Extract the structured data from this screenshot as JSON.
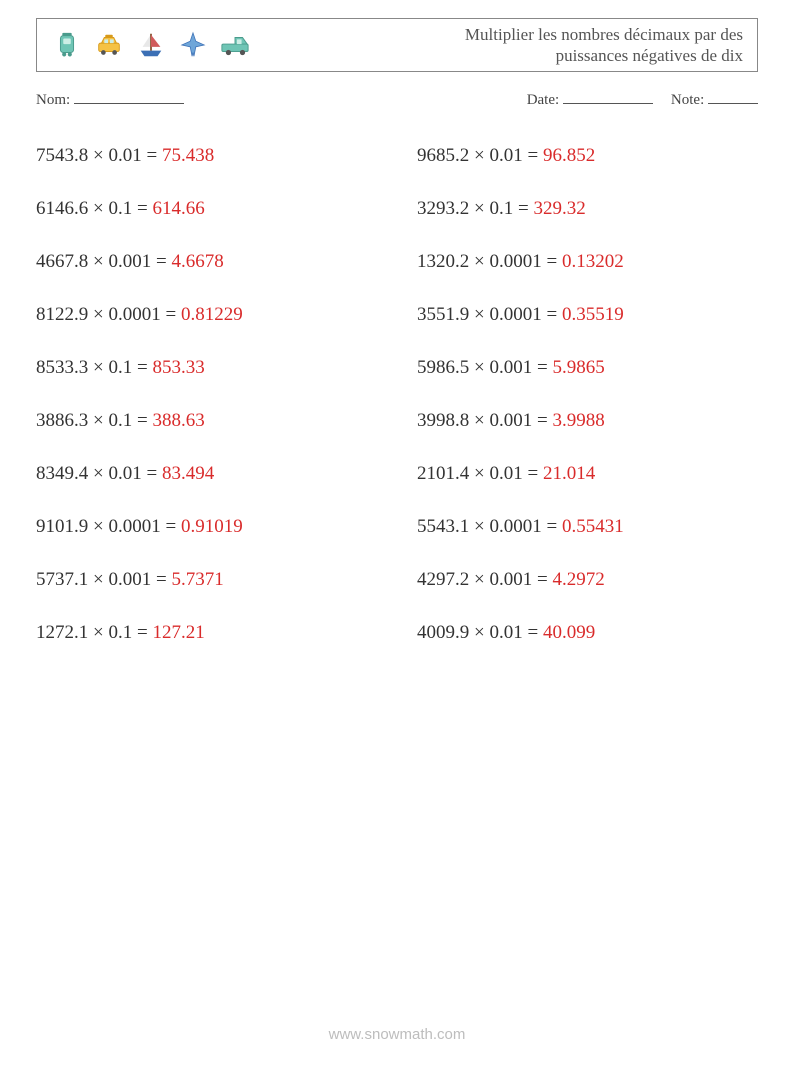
{
  "header": {
    "title_line1": "Multiplier les nombres décimaux par des",
    "title_line2": "puissances négatives de dix",
    "title_color": "#555555",
    "title_fontsize": 17,
    "border_color": "#888888",
    "icons": [
      {
        "name": "train-icon",
        "fill": "#6fc5b5",
        "accent": "#4a9b8c"
      },
      {
        "name": "taxi-icon",
        "fill": "#f5c244",
        "accent": "#d89a1a"
      },
      {
        "name": "sailboat-icon",
        "fill": "#3b6fb5",
        "accent": "#d15b5b"
      },
      {
        "name": "airplane-icon",
        "fill": "#6fa6d9",
        "accent": "#3b6fb5"
      },
      {
        "name": "pickup-icon",
        "fill": "#6fc5b5",
        "accent": "#4a9b8c"
      }
    ]
  },
  "meta": {
    "name_label": "Nom:",
    "date_label": "Date:",
    "note_label": "Note:",
    "name_underline_width": 110,
    "date_underline_width": 90,
    "note_underline_width": 50,
    "text_color": "#444444",
    "fontsize": 15
  },
  "problems": {
    "fontsize": 19,
    "text_color": "#333333",
    "answer_color": "#d92b2b",
    "times_symbol": "×",
    "rows": [
      {
        "left": {
          "a": "7543.8",
          "b": "0.01",
          "ans": "75.438"
        },
        "right": {
          "a": "9685.2",
          "b": "0.01",
          "ans": "96.852"
        }
      },
      {
        "left": {
          "a": "6146.6",
          "b": "0.1",
          "ans": "614.66"
        },
        "right": {
          "a": "3293.2",
          "b": "0.1",
          "ans": "329.32"
        }
      },
      {
        "left": {
          "a": "4667.8",
          "b": "0.001",
          "ans": "4.6678"
        },
        "right": {
          "a": "1320.2",
          "b": "0.0001",
          "ans": "0.13202"
        }
      },
      {
        "left": {
          "a": "8122.9",
          "b": "0.0001",
          "ans": "0.81229"
        },
        "right": {
          "a": "3551.9",
          "b": "0.0001",
          "ans": "0.35519"
        }
      },
      {
        "left": {
          "a": "8533.3",
          "b": "0.1",
          "ans": "853.33"
        },
        "right": {
          "a": "5986.5",
          "b": "0.001",
          "ans": "5.9865"
        }
      },
      {
        "left": {
          "a": "3886.3",
          "b": "0.1",
          "ans": "388.63"
        },
        "right": {
          "a": "3998.8",
          "b": "0.001",
          "ans": "3.9988"
        }
      },
      {
        "left": {
          "a": "8349.4",
          "b": "0.01",
          "ans": "83.494"
        },
        "right": {
          "a": "2101.4",
          "b": "0.01",
          "ans": "21.014"
        }
      },
      {
        "left": {
          "a": "9101.9",
          "b": "0.0001",
          "ans": "0.91019"
        },
        "right": {
          "a": "5543.1",
          "b": "0.0001",
          "ans": "0.55431"
        }
      },
      {
        "left": {
          "a": "5737.1",
          "b": "0.001",
          "ans": "5.7371"
        },
        "right": {
          "a": "4297.2",
          "b": "0.001",
          "ans": "4.2972"
        }
      },
      {
        "left": {
          "a": "1272.1",
          "b": "0.1",
          "ans": "127.21"
        },
        "right": {
          "a": "4009.9",
          "b": "0.01",
          "ans": "40.099"
        }
      }
    ]
  },
  "footer": {
    "text": "www.snowmath.com",
    "color": "#bdbdbd",
    "fontsize": 15
  }
}
